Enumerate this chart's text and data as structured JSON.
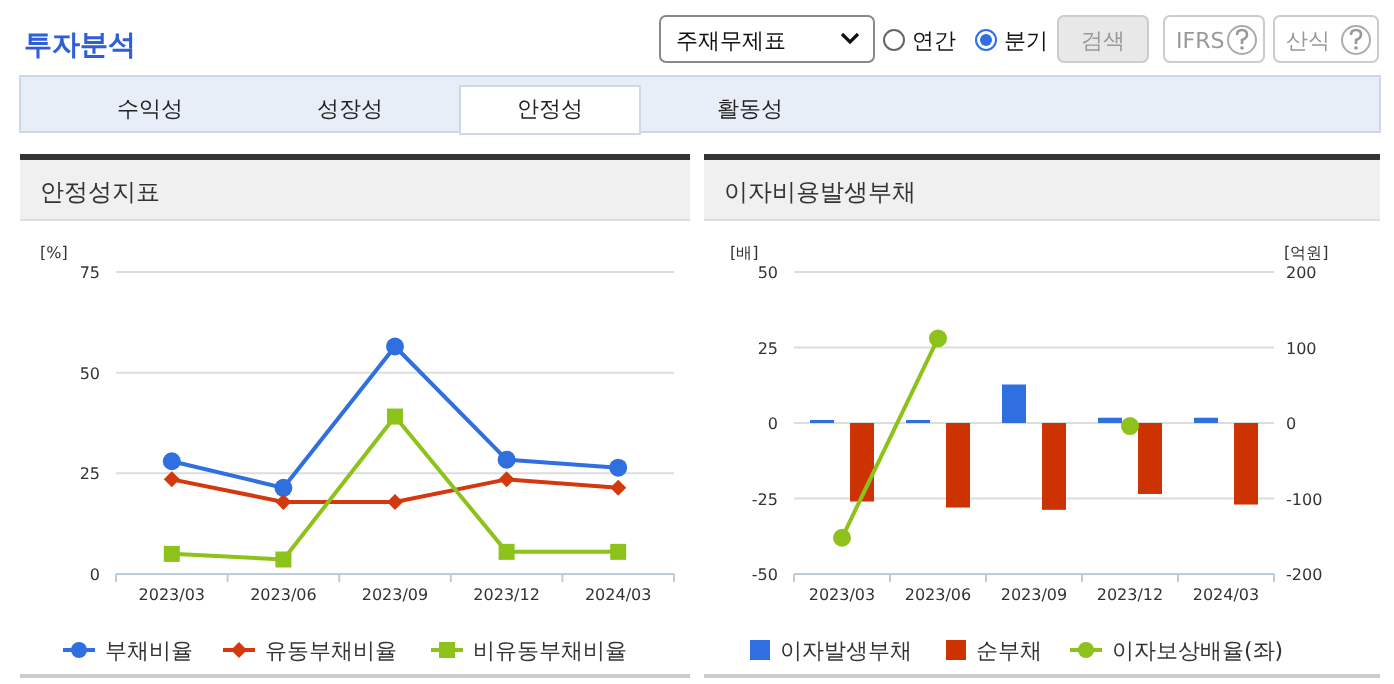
{
  "chart_data": [
    {
      "type": "other",
      "title": "투자분석",
      "annotations": [
        "주재무제표",
        "연간",
        "분기",
        "검색",
        "IFRS",
        "산식",
        "수익성",
        "성장성",
        "안정성",
        "활동성"
      ]
    },
    {
      "type": "line",
      "title": "안정성지표",
      "ylabel": "[%]",
      "categories": [
        "2023/03",
        "2023/06",
        "2023/09",
        "2023/12",
        "2024/03"
      ],
      "ylim": [
        0,
        75
      ],
      "yticks": [
        0,
        25,
        50,
        75
      ],
      "grid": "y",
      "legend": "bottom",
      "series": [
        {
          "name": "부채비율",
          "color": "#2f6fdf",
          "marker": "circle",
          "values": [
            28.0,
            21.4,
            56.5,
            28.4,
            26.4
          ]
        },
        {
          "name": "유동부채비율",
          "color": "#d4380d",
          "marker": "diamond",
          "values": [
            23.5,
            17.9,
            17.9,
            23.5,
            21.4
          ]
        },
        {
          "name": "비유동부채비율",
          "color": "#8cc21a",
          "marker": "square",
          "values": [
            5.0,
            3.6,
            39.1,
            5.5,
            5.5
          ]
        }
      ]
    },
    {
      "type": "bar",
      "title": "이자비용발생부채",
      "ylabel": "[배]",
      "y2label": "[억원]",
      "categories": [
        "2023/03",
        "2023/06",
        "2023/09",
        "2023/12",
        "2024/03"
      ],
      "ylim": [
        -50,
        50
      ],
      "yticks": [
        -50,
        -25,
        0,
        25,
        50
      ],
      "y2lim": [
        -200,
        200
      ],
      "y2ticks": [
        -200,
        -100,
        0,
        100,
        200
      ],
      "grid": "y",
      "legend": "bottom",
      "series": [
        {
          "name": "이자발생부채",
          "color": "#2f6fdf",
          "axis": "y2",
          "values": [
            4,
            4,
            51,
            7,
            7
          ]
        },
        {
          "name": "순부채",
          "color": "#cc3300",
          "axis": "y2",
          "values": [
            -104,
            -112,
            -115,
            -94,
            -108
          ]
        },
        {
          "name": "이자보상배율(좌)",
          "type": "line",
          "marker": "circle",
          "color": "#8cc21a",
          "values": [
            -38,
            28,
            null,
            -1,
            null
          ]
        }
      ]
    }
  ]
}
